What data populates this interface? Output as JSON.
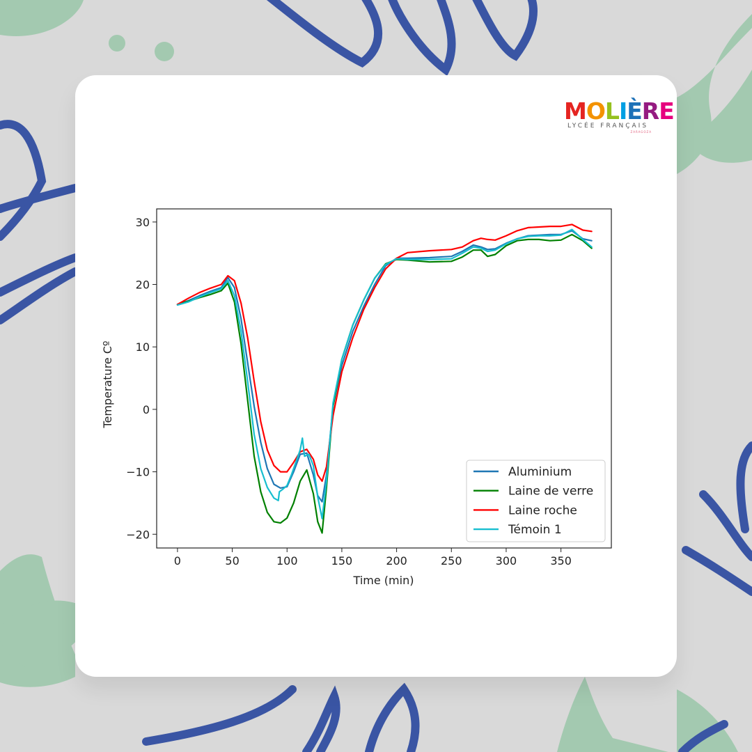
{
  "logo": {
    "word": "MOLIÈRE",
    "letters": [
      "M",
      "O",
      "L",
      "I",
      "È",
      "R",
      "E"
    ],
    "letter_colors": [
      "#e52421",
      "#f39200",
      "#95c11f",
      "#009fe3",
      "#1d71b8",
      "#951b81",
      "#e6007e"
    ],
    "subtitle": "LYCÉE FRANÇAIS",
    "city": "ZARAGOZA"
  },
  "decor": {
    "background_color": "#d9d9d9",
    "leaf_color": "#a3c9b0",
    "scribble_color": "#3a55a4"
  },
  "chart_data": {
    "type": "line",
    "title": "",
    "xlabel": "Time (min)",
    "ylabel": "Temperature Cº",
    "xlim": [
      -19,
      396
    ],
    "ylim": [
      -22.2,
      32.1
    ],
    "xticks": [
      0,
      50,
      100,
      150,
      200,
      250,
      300,
      350
    ],
    "yticks": [
      -20,
      -10,
      0,
      10,
      20,
      30
    ],
    "grid": false,
    "legend_position": "lower right",
    "series": [
      {
        "name": "Aluminium",
        "color": "#1f77b4",
        "x": [
          0,
          10,
          20,
          30,
          40,
          46,
          52,
          58,
          64,
          70,
          76,
          82,
          88,
          94,
          100,
          106,
          112,
          118,
          124,
          128,
          132,
          136,
          142,
          150,
          160,
          170,
          180,
          190,
          200,
          210,
          230,
          250,
          260,
          270,
          277,
          283,
          290,
          300,
          310,
          320,
          330,
          340,
          350,
          360,
          370,
          378
        ],
        "y": [
          16.8,
          17.4,
          18.2,
          18.9,
          19.5,
          21.1,
          19.5,
          14.5,
          7.5,
          0.5,
          -5.3,
          -9.5,
          -12.0,
          -12.6,
          -12.4,
          -10.0,
          -7.2,
          -7.0,
          -10.5,
          -13.8,
          -14.8,
          -10.5,
          0.5,
          7.0,
          12.5,
          16.5,
          20.0,
          23.0,
          24.2,
          24.2,
          24.3,
          24.5,
          25.3,
          26.3,
          26.0,
          25.6,
          25.7,
          26.6,
          27.3,
          27.8,
          27.9,
          28.0,
          28.0,
          28.6,
          27.3,
          27.0
        ]
      },
      {
        "name": "Laine de verre",
        "color": "#008000",
        "x": [
          0,
          10,
          20,
          30,
          40,
          46,
          52,
          58,
          64,
          70,
          76,
          82,
          88,
          94,
          100,
          106,
          112,
          118,
          124,
          128,
          132,
          136,
          142,
          150,
          160,
          170,
          180,
          190,
          200,
          210,
          230,
          250,
          260,
          270,
          277,
          283,
          290,
          300,
          310,
          320,
          330,
          340,
          350,
          360,
          370,
          378
        ],
        "y": [
          16.8,
          17.3,
          17.9,
          18.4,
          19.0,
          20.2,
          17.2,
          10.5,
          1.5,
          -7.5,
          -13.2,
          -16.5,
          -18.0,
          -18.2,
          -17.4,
          -15.0,
          -11.5,
          -9.7,
          -13.5,
          -18.0,
          -19.8,
          -12.5,
          0.5,
          8.0,
          13.5,
          17.5,
          21.0,
          23.3,
          24.0,
          23.9,
          23.6,
          23.7,
          24.4,
          25.5,
          25.5,
          24.5,
          24.8,
          26.2,
          27.0,
          27.2,
          27.2,
          27.0,
          27.1,
          28.0,
          27.0,
          25.8
        ]
      },
      {
        "name": "Laine roche",
        "color": "#ff0000",
        "x": [
          0,
          10,
          20,
          30,
          40,
          46,
          52,
          58,
          64,
          70,
          76,
          82,
          88,
          94,
          100,
          106,
          112,
          118,
          124,
          128,
          132,
          136,
          142,
          150,
          160,
          170,
          180,
          190,
          200,
          210,
          230,
          250,
          260,
          270,
          277,
          283,
          290,
          300,
          310,
          320,
          330,
          340,
          350,
          360,
          370,
          378
        ],
        "y": [
          16.8,
          17.8,
          18.7,
          19.4,
          20.0,
          21.4,
          20.6,
          17.0,
          11.5,
          4.5,
          -2.0,
          -6.5,
          -9.0,
          -10.0,
          -10.0,
          -8.5,
          -6.8,
          -6.4,
          -8.0,
          -10.5,
          -11.5,
          -9.2,
          -1.0,
          6.0,
          11.5,
          16.0,
          19.5,
          22.5,
          24.2,
          25.1,
          25.4,
          25.6,
          26.0,
          27.0,
          27.4,
          27.2,
          27.1,
          27.8,
          28.6,
          29.1,
          29.2,
          29.3,
          29.3,
          29.6,
          28.7,
          28.5
        ]
      },
      {
        "name": "Témoin 1",
        "color": "#17becf",
        "x": [
          0,
          10,
          20,
          30,
          40,
          46,
          52,
          58,
          64,
          70,
          76,
          82,
          88,
          92,
          93,
          96,
          100,
          104,
          108,
          112,
          114,
          116,
          120,
          124,
          128,
          132,
          136,
          142,
          150,
          160,
          170,
          180,
          190,
          200,
          210,
          230,
          250,
          260,
          270,
          277,
          283,
          290,
          300,
          310,
          320,
          330,
          340,
          350,
          360,
          370,
          378
        ],
        "y": [
          16.7,
          17.2,
          18.0,
          18.7,
          19.3,
          20.6,
          18.2,
          12.5,
          4.5,
          -4.0,
          -9.5,
          -12.5,
          -14.2,
          -14.6,
          -13.2,
          -12.8,
          -12.2,
          -10.5,
          -8.5,
          -6.5,
          -4.6,
          -7.5,
          -7.2,
          -9.0,
          -14.0,
          -17.5,
          -11.5,
          1.0,
          8.0,
          13.5,
          17.5,
          21.0,
          23.2,
          24.1,
          24.0,
          24.0,
          24.1,
          25.0,
          26.0,
          25.8,
          25.3,
          25.5,
          26.5,
          27.3,
          27.7,
          27.8,
          27.8,
          27.9,
          28.8,
          27.2,
          26.0
        ]
      }
    ]
  }
}
